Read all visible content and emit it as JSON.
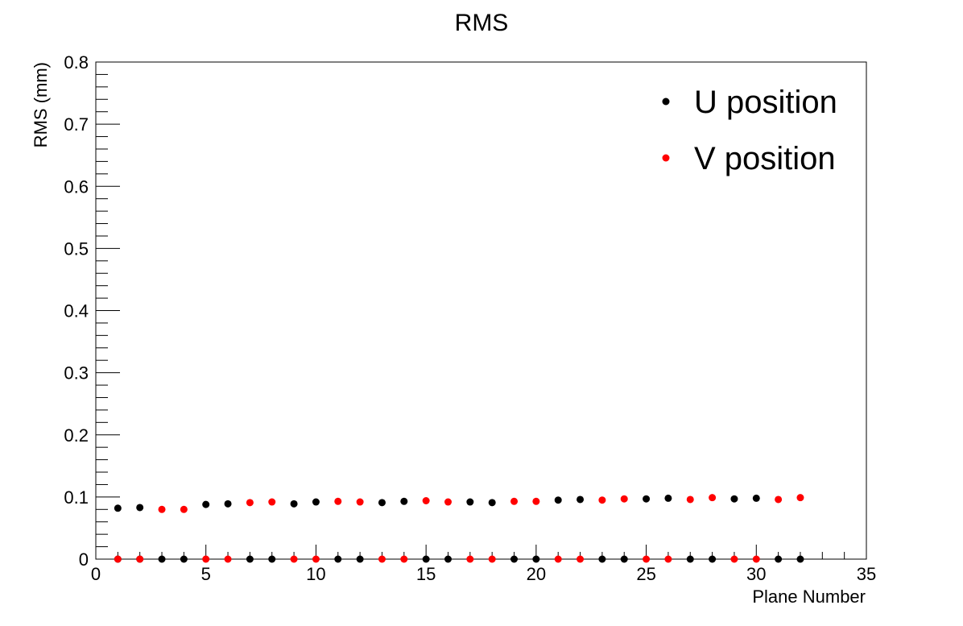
{
  "colors": {
    "U": "#000000",
    "V": "#ff0000",
    "axis": "#000000",
    "background": "#ffffff"
  },
  "chart_data": {
    "type": "scatter",
    "title": "RMS",
    "xlabel": "Plane Number",
    "ylabel": "RMS (mm)",
    "xlim": [
      0,
      35
    ],
    "ylim": [
      0,
      0.8
    ],
    "x_ticks": [
      0,
      5,
      10,
      15,
      20,
      25,
      30,
      35
    ],
    "y_ticks": [
      0,
      0.1,
      0.2,
      0.3,
      0.4,
      0.5,
      0.6,
      0.7,
      0.8
    ],
    "x_tick_labels": [
      "0",
      "5",
      "10",
      "15",
      "20",
      "25",
      "30",
      "35"
    ],
    "y_tick_labels": [
      "0",
      "0.1",
      "0.2",
      "0.3",
      "0.4",
      "0.5",
      "0.6",
      "0.7",
      "0.8"
    ],
    "grid": false,
    "legend_position": "top-right",
    "series": [
      {
        "name": "U position",
        "color": "#000000",
        "points": [
          [
            1,
            0.082
          ],
          [
            1,
            0
          ],
          [
            2,
            0.083
          ],
          [
            2,
            0
          ],
          [
            3,
            0
          ],
          [
            4,
            0
          ],
          [
            5,
            0.088
          ],
          [
            6,
            0.089
          ],
          [
            7,
            0
          ],
          [
            8,
            0
          ],
          [
            9,
            0.089
          ],
          [
            10,
            0.092
          ],
          [
            11,
            0
          ],
          [
            12,
            0
          ],
          [
            13,
            0.091
          ],
          [
            14,
            0.093
          ],
          [
            15,
            0
          ],
          [
            16,
            0
          ],
          [
            17,
            0.092
          ],
          [
            18,
            0.091
          ],
          [
            19,
            0
          ],
          [
            20,
            0
          ],
          [
            21,
            0.095
          ],
          [
            22,
            0.096
          ],
          [
            23,
            0
          ],
          [
            24,
            0
          ],
          [
            25,
            0.097
          ],
          [
            26,
            0.098
          ],
          [
            27,
            0
          ],
          [
            28,
            0
          ],
          [
            29,
            0.097
          ],
          [
            30,
            0.098
          ],
          [
            31,
            0
          ],
          [
            32,
            0
          ]
        ]
      },
      {
        "name": "V position",
        "color": "#ff0000",
        "points": [
          [
            1,
            0
          ],
          [
            2,
            0
          ],
          [
            3,
            0.08
          ],
          [
            4,
            0.08
          ],
          [
            5,
            0
          ],
          [
            6,
            0
          ],
          [
            7,
            0.091
          ],
          [
            8,
            0.092
          ],
          [
            9,
            0
          ],
          [
            10,
            0
          ],
          [
            11,
            0.093
          ],
          [
            12,
            0.092
          ],
          [
            13,
            0
          ],
          [
            14,
            0
          ],
          [
            15,
            0.094
          ],
          [
            16,
            0.092
          ],
          [
            17,
            0
          ],
          [
            18,
            0
          ],
          [
            19,
            0.093
          ],
          [
            20,
            0.093
          ],
          [
            21,
            0
          ],
          [
            22,
            0
          ],
          [
            23,
            0.095
          ],
          [
            24,
            0.097
          ],
          [
            25,
            0
          ],
          [
            26,
            0
          ],
          [
            27,
            0.096
          ],
          [
            28,
            0.099
          ],
          [
            29,
            0
          ],
          [
            30,
            0
          ],
          [
            31,
            0.096
          ],
          [
            32,
            0.099
          ]
        ]
      }
    ]
  }
}
